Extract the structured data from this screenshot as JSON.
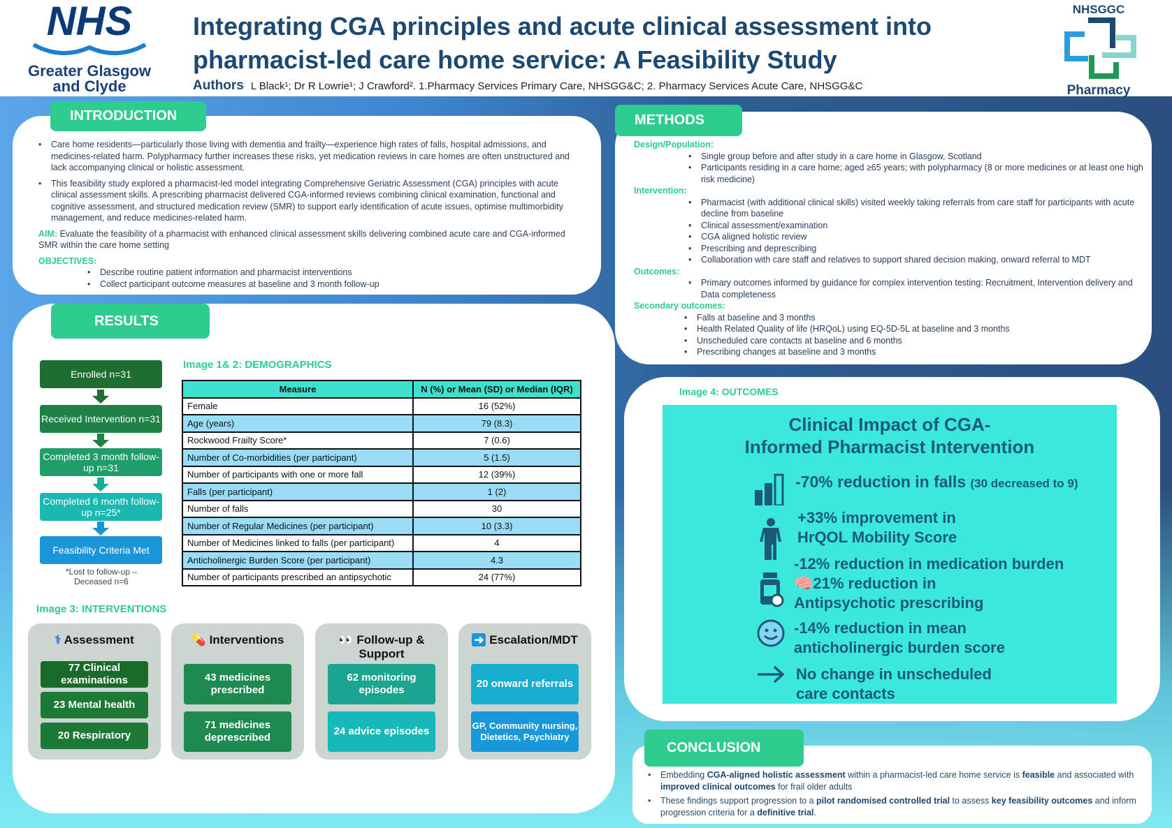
{
  "header": {
    "logo_left": {
      "brand": "NHS",
      "line1": "Greater Glasgow",
      "line2": "and Clyde"
    },
    "title_line1": "Integrating CGA principles and acute clinical assessment into",
    "title_line2": "pharmacist-led care home service: A Feasibility Study",
    "authors_label": "Authors",
    "authors": "L Black¹; Dr R Lowrie¹; J Crawford².  1.Pharmacy Services Primary Care, NHSGG&C; 2. Pharmacy Services Acute Care, NHSGG&C",
    "logo_right": {
      "top": "NHSGGC",
      "bottom": "Pharmacy"
    }
  },
  "introduction": {
    "heading": "INTRODUCTION",
    "bullets": [
      "Care home residents—particularly those living with dementia and frailty—experience high rates of falls, hospital admissions, and medicines-related harm. Polypharmacy further increases these risks, yet medication reviews in care homes are often unstructured and lack accompanying clinical or holistic assessment.",
      "This feasibility study explored a pharmacist-led model integrating Comprehensive Geriatric Assessment (CGA) principles with acute clinical assessment skills. A prescribing pharmacist delivered CGA-informed reviews combining clinical examination, functional and cognitive assessment, and structured medication review (SMR) to support early identification of acute issues, optimise multimorbidity management, and reduce medicines-related harm."
    ],
    "aim_label": "AIM:",
    "aim": "Evaluate the feasibility of a pharmacist with enhanced clinical assessment skills delivering combined acute care and CGA-informed SMR within the care home setting",
    "objectives_label": "OBJECTIVES:",
    "objectives": [
      "Describe routine patient information and pharmacist interventions",
      "Collect participant outcome measures at baseline and 3 month follow-up"
    ]
  },
  "results": {
    "heading": "RESULTS",
    "flow": [
      "Enrolled n=31",
      "Received Intervention n=31",
      "Completed 3 month follow-up  n=31",
      "Completed 6 month follow-up n=25*",
      "Feasibility Criteria Met"
    ],
    "flow_note": "*Lost to follow-up – Deceased n=6",
    "demographics_label": "Image 1& 2: DEMOGRAPHICS",
    "table": {
      "headers": [
        "Measure",
        "N (%) or Mean (SD) or Median (IQR)"
      ],
      "rows": [
        [
          "Female",
          "16 (52%)"
        ],
        [
          "Age (years)",
          "79 (8.3)"
        ],
        [
          "Rockwood Frailty Score*",
          "7 (0.6)"
        ],
        [
          "Number of Co-morbidities (per participant)",
          "5 (1.5)"
        ],
        [
          "Number of participants with one or more fall",
          "12 (39%)"
        ],
        [
          "Falls (per participant)",
          "1 (2)"
        ],
        [
          "Number of falls",
          "30"
        ],
        [
          "Number of Regular Medicines (per participant)",
          "10 (3.3)"
        ],
        [
          "Number of Medicines linked to falls (per participant)",
          "4"
        ],
        [
          "Anticholinergic Burden Score  (per participant)",
          "4.3"
        ],
        [
          "Number of participants prescribed an antipsychotic",
          "24 (77%)"
        ]
      ]
    },
    "interventions_label": "Image 3: INTERVENTIONS",
    "cards": [
      {
        "title": "Assessment",
        "icon": "stethoscope",
        "items": [
          "77 Clinical examinations",
          "23 Mental health",
          "20 Respiratory"
        ]
      },
      {
        "title": "Interventions",
        "icon": "pill",
        "items": [
          "43 medicines prescribed",
          "71 medicines deprescribed"
        ]
      },
      {
        "title": "Follow-up & Support",
        "icon": "eyes",
        "items": [
          "62 monitoring episodes",
          "24 advice episodes"
        ]
      },
      {
        "title": "Escalation/MDT",
        "icon": "arrow-right",
        "items": [
          "20 onward referrals",
          "GP, Community nursing, Dietetics, Psychiatry"
        ]
      }
    ]
  },
  "methods": {
    "heading": "METHODS",
    "sections": [
      {
        "label": "Design/Population:",
        "items": [
          "Single group before and after study in a care home in Glasgow, Scotland",
          "Participants residing in a care home; aged ≥65 years; with polypharmacy (8 or more medicines or at least one high risk medicine)"
        ]
      },
      {
        "label": "Intervention:",
        "items": [
          "Pharmacist (with additional clinical skills) visited weekly taking referrals from care staff for participants with acute decline from baseline",
          "Clinical assessment/examination",
          "CGA aligned holistic review",
          "Prescribing and deprescribing",
          "Collaboration with care staff and relatives to support shared decision making, onward referral to MDT"
        ]
      },
      {
        "label": "Outcomes:",
        "items": [
          "Primary outcomes informed by guidance for complex intervention testing: Recruitment, Intervention delivery and Data completeness"
        ]
      },
      {
        "label": "Secondary outcomes:",
        "items": [
          "Falls at baseline and 3 months",
          "Health Related Quality of life (HRQoL) using EQ-5D-5L at baseline and 3 months",
          "Unscheduled care contacts at baseline and 6 months",
          "Prescribing changes at baseline and 3 months"
        ]
      }
    ]
  },
  "outcomes": {
    "label": "Image 4: OUTCOMES",
    "title_line1": "Clinical Impact of CGA-",
    "title_line2": "Informed Pharmacist Intervention",
    "falls": "-70% reduction in falls",
    "falls_note": "(30 decreased to 9)",
    "mobility1": "+33% improvement in",
    "mobility2": "HrQOL Mobility Score",
    "med1": "-12% reduction in medication burden",
    "med2": "21% reduction in",
    "med3": "Antipsychotic prescribing",
    "acb1": "-14% reduction in mean",
    "acb2": "anticholinergic burden score",
    "uc1": "No change in unscheduled",
    "uc2": "care contacts"
  },
  "conclusion": {
    "heading": "CONCLUSION",
    "b1": [
      [
        "Embedding ",
        false
      ],
      [
        "CGA-aligned holistic assessment",
        true
      ],
      [
        " within a pharmacist-led care home service is ",
        false
      ],
      [
        "feasible",
        true
      ],
      [
        " and associated with ",
        false
      ],
      [
        "improved clinical outcomes",
        true
      ],
      [
        " for frail older adults",
        false
      ]
    ],
    "b2": [
      [
        "These findings support progression to a ",
        false
      ],
      [
        "pilot randomised controlled trial",
        true
      ],
      [
        " to assess ",
        false
      ],
      [
        "key feasibility outcomes",
        true
      ],
      [
        " and inform progression criteria for a ",
        false
      ],
      [
        "definitive trial",
        true
      ],
      [
        ".",
        false
      ]
    ]
  },
  "colors": {
    "accent_green": "#2ecc8e",
    "navy": "#1d4872",
    "outcome_panel": "#3ae8dc",
    "table_header": "#40e0d0",
    "table_alt": "#9adcf5"
  }
}
